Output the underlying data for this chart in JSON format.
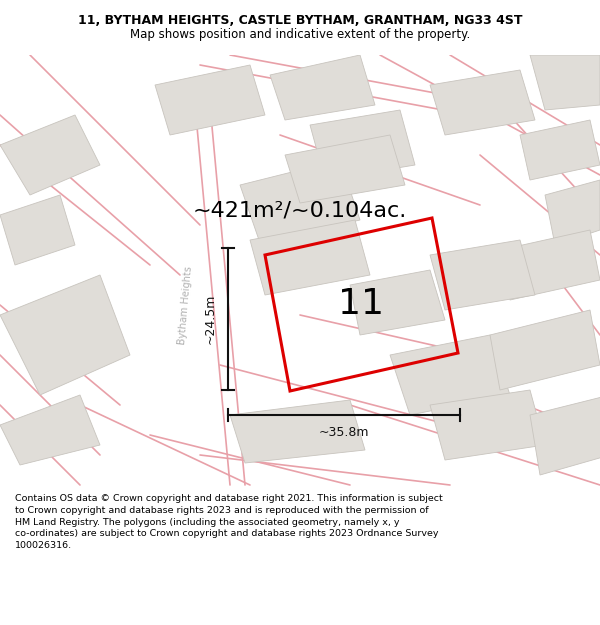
{
  "title_line1": "11, BYTHAM HEIGHTS, CASTLE BYTHAM, GRANTHAM, NG33 4ST",
  "title_line2": "Map shows position and indicative extent of the property.",
  "area_text": "~421m²/~0.104ac.",
  "number_label": "11",
  "width_label": "~35.8m",
  "height_label": "~24.5m",
  "street_label": "Bytham Heights",
  "footer_text": "Contains OS data © Crown copyright and database right 2021. This information is subject to Crown copyright and database rights 2023 and is reproduced with the permission of HM Land Registry. The polygons (including the associated geometry, namely x, y co-ordinates) are subject to Crown copyright and database rights 2023 Ordnance Survey 100026316.",
  "map_bg": "#ffffff",
  "building_fill": "#e0ddd8",
  "building_edge": "#c8c4be",
  "plot_outline_color": "#dd0000",
  "road_line_color": "#e8a0a8",
  "dim_color": "#111111",
  "street_label_color": "#b0b0b0",
  "title_fontsize": 9,
  "subtitle_fontsize": 8.5,
  "area_fontsize": 16,
  "number_fontsize": 26,
  "dim_fontsize": 9,
  "street_fontsize": 7,
  "footer_fontsize": 6.8,
  "plot_lw": 2.2,
  "road_lw": 1.2
}
